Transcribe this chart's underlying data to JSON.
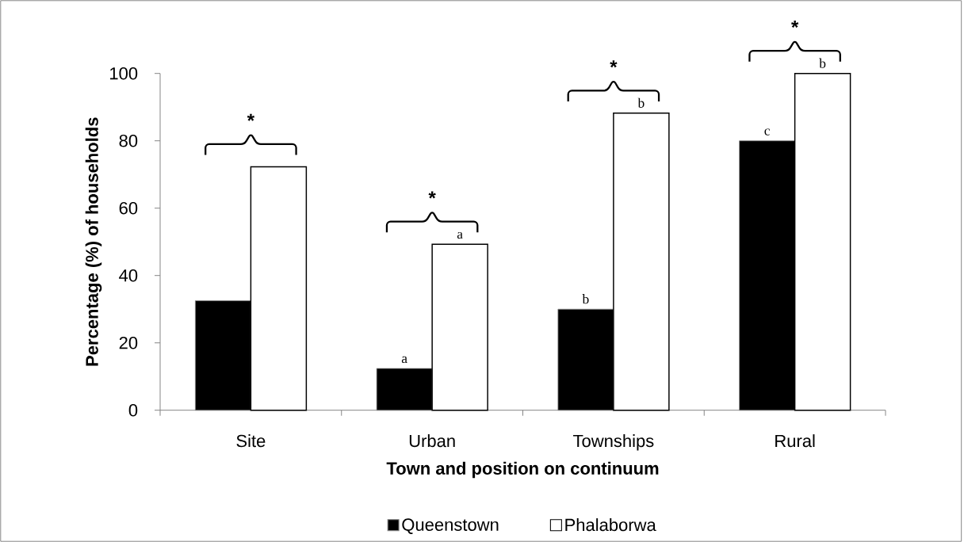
{
  "chart_data": {
    "type": "bar",
    "xlabel": "Town and position on continuum",
    "ylabel": "Percentage (%) of households",
    "categories": [
      "Site",
      "Urban",
      "Townships",
      "Rural"
    ],
    "series": [
      {
        "name": "Queenstown",
        "color": "#000000",
        "values": [
          32.5,
          12.4,
          30,
          80
        ],
        "value_labels": [
          null,
          "a",
          "b",
          "c"
        ]
      },
      {
        "name": "Phalaborwa",
        "color": "#ffffff",
        "values": [
          72.3,
          49.3,
          88.2,
          100
        ],
        "value_labels": [
          null,
          "a",
          "b",
          "b"
        ]
      }
    ],
    "ylim": [
      0,
      100
    ],
    "yticks": [
      0,
      20,
      40,
      60,
      80,
      100
    ],
    "legend": "bottom",
    "annotations": [
      "*",
      "*",
      "*",
      "*"
    ]
  }
}
